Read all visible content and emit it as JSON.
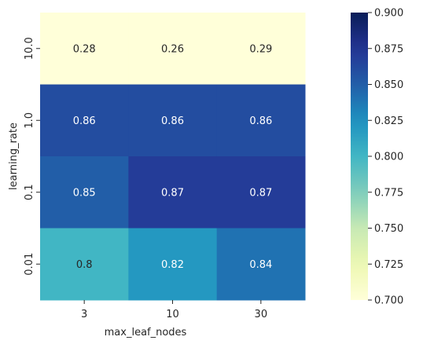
{
  "chart_data": {
    "type": "heatmap",
    "title": "",
    "xlabel": "max_leaf_nodes",
    "ylabel": "learning_rate",
    "x_categories": [
      "3",
      "10",
      "30"
    ],
    "y_categories": [
      "10.0",
      "1.0",
      "0.1",
      "0.01"
    ],
    "values": [
      [
        0.28,
        0.26,
        0.29
      ],
      [
        0.86,
        0.86,
        0.86
      ],
      [
        0.85,
        0.87,
        0.87
      ],
      [
        0.8,
        0.82,
        0.84
      ]
    ],
    "cell_labels": [
      [
        "0.28",
        "0.26",
        "0.29"
      ],
      [
        "0.86",
        "0.86",
        "0.86"
      ],
      [
        "0.85",
        "0.87",
        "0.87"
      ],
      [
        "0.8",
        "0.82",
        "0.84"
      ]
    ],
    "colormap": "YlGnBu",
    "vmin": 0.7,
    "vmax": 0.9,
    "colorbar_ticks": [
      "0.700",
      "0.725",
      "0.750",
      "0.775",
      "0.800",
      "0.825",
      "0.850",
      "0.875",
      "0.900"
    ],
    "grid": false
  }
}
